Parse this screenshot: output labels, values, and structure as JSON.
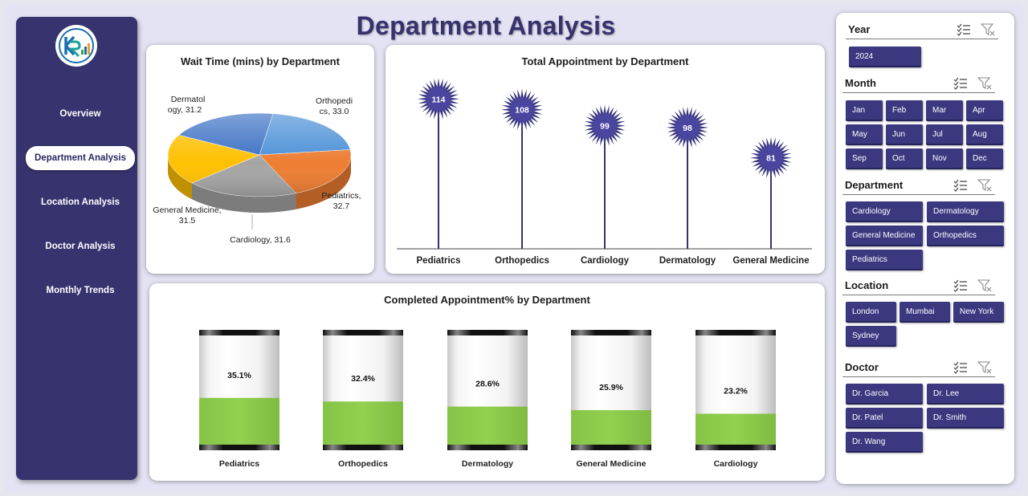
{
  "title": "Department Analysis",
  "sidebar": {
    "items": [
      {
        "label": "Overview",
        "active": false
      },
      {
        "label": "Department Analysis",
        "active": true
      },
      {
        "label": "Location Analysis",
        "active": false
      },
      {
        "label": "Doctor Analysis",
        "active": false
      },
      {
        "label": "Monthly Trends",
        "active": false
      }
    ]
  },
  "colors": {
    "sidebar": "#37336f",
    "chip": "#3b3880",
    "accent_green": "#92d050",
    "pie": [
      "#4a8fd6",
      "#ed7d31",
      "#a5a5a5",
      "#ffc000",
      "#3a6fc4"
    ]
  },
  "charts": {
    "wait_time": {
      "title": "Wait Time (mins) by Department",
      "labels": {
        "dermatology": [
          "Dermatol",
          "ogy, 31.2"
        ],
        "orthopedics": [
          "Orthopedi",
          "cs, 33.0"
        ],
        "pediatrics": [
          "Pediatrics,",
          "32.7"
        ],
        "cardiology": [
          "Cardiology, 31.6"
        ],
        "general": [
          "General Medicine,",
          "31.5"
        ]
      }
    },
    "total_appt": {
      "title": "Total Appointment by Department"
    },
    "completed": {
      "title": "Completed Appointment% by Department"
    }
  },
  "chart_data": [
    {
      "type": "pie",
      "title": "Wait Time (mins) by Department",
      "categories": [
        "Orthopedics",
        "Pediatrics",
        "Cardiology",
        "General Medicine",
        "Dermatology"
      ],
      "values": [
        33.0,
        32.7,
        31.6,
        31.5,
        31.2
      ]
    },
    {
      "type": "scatter",
      "title": "Total Appointment by Department",
      "categories": [
        "Pediatrics",
        "Orthopedics",
        "Cardiology",
        "Dermatology",
        "General Medicine"
      ],
      "values": [
        114,
        108,
        99,
        98,
        81
      ],
      "value_labels": [
        "114",
        "108",
        "99",
        "98",
        "81"
      ]
    },
    {
      "type": "bar",
      "title": "Completed Appointment% by Department",
      "categories": [
        "Pediatrics",
        "Orthopedics",
        "Dermatology",
        "General Medicine",
        "Cardiology"
      ],
      "values": [
        35.1,
        32.4,
        28.6,
        25.9,
        23.2
      ],
      "value_labels": [
        "35.1%",
        "32.4%",
        "28.6%",
        "25.9%",
        "23.2%"
      ]
    }
  ],
  "slicers": {
    "year": {
      "title": "Year",
      "items": [
        "2024"
      ]
    },
    "month": {
      "title": "Month",
      "items": [
        "Jan",
        "Feb",
        "Mar",
        "Apr",
        "May",
        "Jun",
        "Jul",
        "Aug",
        "Sep",
        "Oct",
        "Nov",
        "Dec"
      ]
    },
    "department": {
      "title": "Department",
      "items": [
        "Cardiology",
        "Dermatology",
        "General Medicine",
        "Orthopedics",
        "Pediatrics"
      ]
    },
    "location": {
      "title": "Location",
      "items": [
        "London",
        "Mumbai",
        "New York",
        "Sydney"
      ]
    },
    "doctor": {
      "title": "Doctor",
      "items": [
        "Dr. Garcia",
        "Dr. Lee",
        "Dr. Patel",
        "Dr. Smith",
        "Dr. Wang"
      ]
    }
  }
}
